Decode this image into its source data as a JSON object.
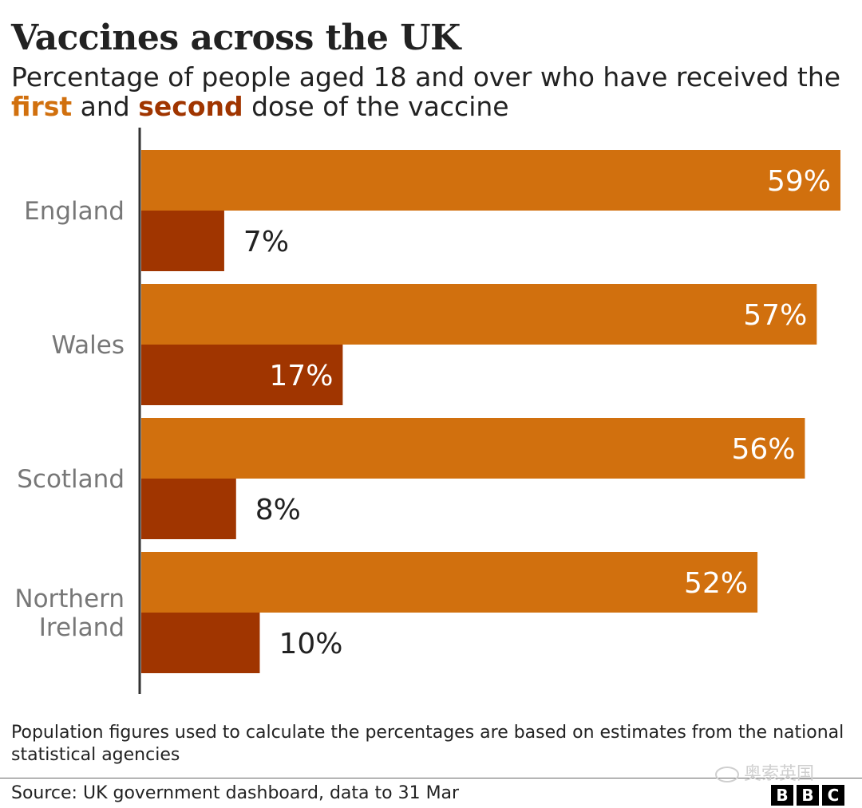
{
  "title": "Vaccines across the UK",
  "subtitle": {
    "prefix": "Percentage of people aged 18 and over who have received the ",
    "first": "first",
    "middle": " and ",
    "second": "second",
    "suffix": " dose of the vaccine"
  },
  "colors": {
    "first_dose": "#d1700e",
    "second_dose": "#a03500",
    "axis": "#333333",
    "category_label": "#777777",
    "label_inside": "#ffffff",
    "label_outside": "#222222"
  },
  "chart_data": {
    "type": "bar",
    "orientation": "horizontal",
    "categories": [
      "England",
      "Wales",
      "Scotland",
      "Northern Ireland"
    ],
    "category_lines": [
      [
        "England"
      ],
      [
        "Wales"
      ],
      [
        "Scotland"
      ],
      [
        "Northern",
        "Ireland"
      ]
    ],
    "series": [
      {
        "name": "first",
        "values": [
          59,
          57,
          56,
          52
        ],
        "labels": [
          "59%",
          "57%",
          "56%",
          "52%"
        ]
      },
      {
        "name": "second",
        "values": [
          7,
          17,
          8,
          10
        ],
        "labels": [
          "7%",
          "17%",
          "8%",
          "10%"
        ]
      }
    ],
    "xlim": [
      0,
      59
    ],
    "unit": "%",
    "grid": false,
    "legend": "none"
  },
  "footnote": "Population figures used to calculate the percentages are based on estimates from the national statistical agencies",
  "source": "Source: UK government dashboard, data to 31 Mar",
  "watermark": "奥索英国",
  "logo": [
    "B",
    "B",
    "C"
  ]
}
